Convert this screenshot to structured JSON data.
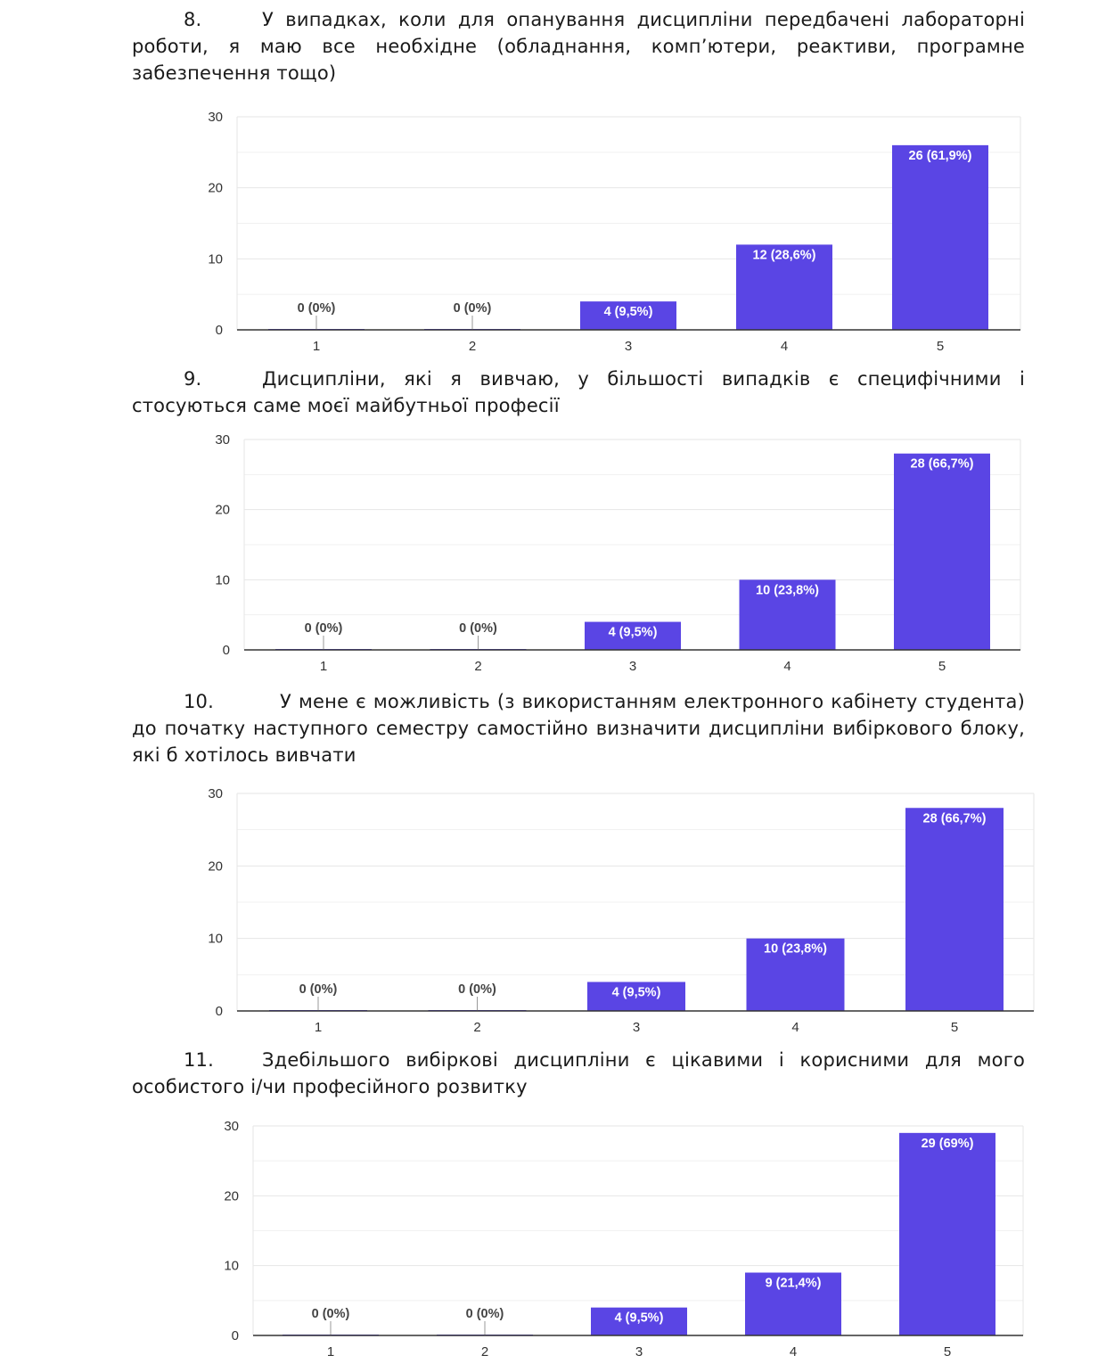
{
  "questions": [
    {
      "number": "8.",
      "text": "У випадках, коли для опанування дисципліни передбачені лабораторні роботи, я маю все необхідне (обладнання, комп’ютери, реактиви, програмне забезпечення тощо)"
    },
    {
      "number": "9.",
      "text": "Дисципліни, які я вивчаю, у більшості випадків є специфічними і стосуються саме моєї майбутньої професії"
    },
    {
      "number": "10.",
      "text": "У мене є можливість (з використанням електронного кабінету студента) до початку наступного семестру самостійно визначити дисципліни вибіркового блоку, які б хотілось вивчати"
    },
    {
      "number": "11.",
      "text": "Здебільшого вибіркові дисципліни є цікавими і корисними для мого особистого і/чи професійного розвитку"
    }
  ],
  "colors": {
    "bar": "#5a45e4",
    "grid": "#e6e6e6",
    "axis": "#333333"
  },
  "chart_data": [
    {
      "type": "bar",
      "categories": [
        "1",
        "2",
        "3",
        "4",
        "5"
      ],
      "values": [
        0,
        0,
        4,
        12,
        26
      ],
      "labels": [
        "0 (0%)",
        "0 (0%)",
        "4 (9,5%)",
        "12 (28,6%)",
        "26 (61,9%)"
      ],
      "yticks": [
        "0",
        "10",
        "20",
        "30"
      ],
      "ylim": [
        0,
        30
      ],
      "grid": true
    },
    {
      "type": "bar",
      "categories": [
        "1",
        "2",
        "3",
        "4",
        "5"
      ],
      "values": [
        0,
        0,
        4,
        10,
        28
      ],
      "labels": [
        "0 (0%)",
        "0 (0%)",
        "4 (9,5%)",
        "10 (23,8%)",
        "28 (66,7%)"
      ],
      "yticks": [
        "0",
        "10",
        "20",
        "30"
      ],
      "ylim": [
        0,
        30
      ],
      "grid": true
    },
    {
      "type": "bar",
      "categories": [
        "1",
        "2",
        "3",
        "4",
        "5"
      ],
      "values": [
        0,
        0,
        4,
        10,
        28
      ],
      "labels": [
        "0 (0%)",
        "0 (0%)",
        "4 (9,5%)",
        "10 (23,8%)",
        "28 (66,7%)"
      ],
      "yticks": [
        "0",
        "10",
        "20",
        "30"
      ],
      "ylim": [
        0,
        30
      ],
      "grid": true
    },
    {
      "type": "bar",
      "categories": [
        "1",
        "2",
        "3",
        "4",
        "5"
      ],
      "values": [
        0,
        0,
        4,
        9,
        29
      ],
      "labels": [
        "0 (0%)",
        "0 (0%)",
        "4 (9,5%)",
        "9 (21,4%)",
        "29 (69%)"
      ],
      "yticks": [
        "0",
        "10",
        "20",
        "30"
      ],
      "ylim": [
        0,
        30
      ],
      "grid": true
    }
  ]
}
